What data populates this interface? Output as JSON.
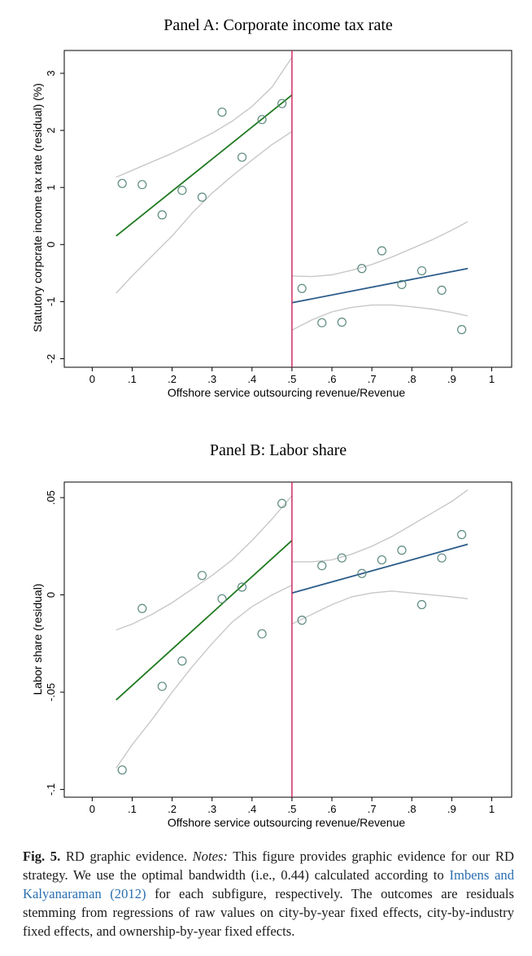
{
  "chart_data": [
    {
      "type": "scatter",
      "title": "Panel A: Corporate income tax rate",
      "xlabel": "Offshore service outsourcing revenue/Revenue",
      "ylabel": "Statutory corpcrate income tax rate (residual) (%)",
      "xlim": [
        -0.07,
        1.05
      ],
      "ylim": [
        -2.15,
        3.4
      ],
      "x_ticks": [
        0,
        0.1,
        0.2,
        0.3,
        0.4,
        0.5,
        0.6,
        0.7,
        0.8,
        0.9,
        1
      ],
      "x_tick_labels": [
        "0",
        ".1",
        ".2",
        ".3",
        ".4",
        ".5",
        ".6",
        ".7",
        ".8",
        ".9",
        "1"
      ],
      "y_ticks": [
        -2,
        -1,
        0,
        1,
        2,
        3
      ],
      "y_tick_labels": [
        "-2",
        "-1",
        "0",
        "1",
        "2",
        "3"
      ],
      "cutoff": 0.5,
      "points": [
        {
          "x": 0.075,
          "y": 1.07
        },
        {
          "x": 0.125,
          "y": 1.05
        },
        {
          "x": 0.175,
          "y": 0.52
        },
        {
          "x": 0.225,
          "y": 0.95
        },
        {
          "x": 0.275,
          "y": 0.83
        },
        {
          "x": 0.325,
          "y": 2.32
        },
        {
          "x": 0.375,
          "y": 1.53
        },
        {
          "x": 0.425,
          "y": 2.19
        },
        {
          "x": 0.475,
          "y": 2.47
        },
        {
          "x": 0.525,
          "y": -0.77
        },
        {
          "x": 0.575,
          "y": -1.37
        },
        {
          "x": 0.625,
          "y": -1.36
        },
        {
          "x": 0.675,
          "y": -0.42
        },
        {
          "x": 0.725,
          "y": -0.11
        },
        {
          "x": 0.775,
          "y": -0.7
        },
        {
          "x": 0.825,
          "y": -0.46
        },
        {
          "x": 0.875,
          "y": -0.8
        },
        {
          "x": 0.925,
          "y": -1.49
        }
      ],
      "fit_left": {
        "x": [
          0.06,
          0.5
        ],
        "y": [
          0.15,
          2.62
        ]
      },
      "fit_right": {
        "x": [
          0.5,
          0.94
        ],
        "y": [
          -1.02,
          -0.42
        ]
      },
      "ci_left_upper": {
        "x": [
          0.06,
          0.1,
          0.15,
          0.2,
          0.25,
          0.3,
          0.35,
          0.4,
          0.45,
          0.5
        ],
        "y": [
          1.18,
          1.3,
          1.45,
          1.6,
          1.77,
          1.95,
          2.16,
          2.42,
          2.76,
          3.28
        ]
      },
      "ci_left_lower": {
        "x": [
          0.06,
          0.1,
          0.15,
          0.2,
          0.25,
          0.3,
          0.35,
          0.4,
          0.45,
          0.5
        ],
        "y": [
          -0.85,
          -0.55,
          -0.2,
          0.15,
          0.55,
          0.9,
          1.2,
          1.48,
          1.75,
          1.98
        ]
      },
      "ci_right_upper": {
        "x": [
          0.5,
          0.55,
          0.6,
          0.65,
          0.7,
          0.75,
          0.8,
          0.85,
          0.9,
          0.94
        ],
        "y": [
          -0.55,
          -0.56,
          -0.53,
          -0.45,
          -0.35,
          -0.22,
          -0.07,
          0.08,
          0.25,
          0.4
        ]
      },
      "ci_right_lower": {
        "x": [
          0.5,
          0.55,
          0.6,
          0.65,
          0.7,
          0.75,
          0.8,
          0.85,
          0.9,
          0.94
        ],
        "y": [
          -1.5,
          -1.32,
          -1.18,
          -1.1,
          -1.06,
          -1.06,
          -1.09,
          -1.13,
          -1.19,
          -1.25
        ]
      },
      "colors": {
        "points": "#5c8a80",
        "fit_left": "#1f7a1f",
        "fit_right": "#2b5c8a",
        "ci": "#c8c8c8",
        "cutoff": "#cc1f5a"
      }
    },
    {
      "type": "scatter",
      "title": "Panel B: Labor share",
      "xlabel": "Offshore service outsourcing revenue/Revenue",
      "ylabel": "Labor share (residual)",
      "xlim": [
        -0.07,
        1.05
      ],
      "ylim": [
        -0.104,
        0.058
      ],
      "x_ticks": [
        0,
        0.1,
        0.2,
        0.3,
        0.4,
        0.5,
        0.6,
        0.7,
        0.8,
        0.9,
        1
      ],
      "x_tick_labels": [
        "0",
        ".1",
        ".2",
        ".3",
        ".4",
        ".5",
        ".6",
        ".7",
        ".8",
        ".9",
        "1"
      ],
      "y_ticks": [
        -0.1,
        -0.05,
        0,
        0.05
      ],
      "y_tick_labels": [
        "-.1",
        "-.05",
        "0",
        ".05"
      ],
      "cutoff": 0.5,
      "points": [
        {
          "x": 0.075,
          "y": -0.09
        },
        {
          "x": 0.125,
          "y": -0.007
        },
        {
          "x": 0.175,
          "y": -0.047
        },
        {
          "x": 0.225,
          "y": -0.034
        },
        {
          "x": 0.275,
          "y": 0.01
        },
        {
          "x": 0.325,
          "y": -0.002
        },
        {
          "x": 0.375,
          "y": 0.004
        },
        {
          "x": 0.425,
          "y": -0.02
        },
        {
          "x": 0.475,
          "y": 0.047
        },
        {
          "x": 0.525,
          "y": -0.013
        },
        {
          "x": 0.575,
          "y": 0.015
        },
        {
          "x": 0.625,
          "y": 0.019
        },
        {
          "x": 0.675,
          "y": 0.011
        },
        {
          "x": 0.725,
          "y": 0.018
        },
        {
          "x": 0.775,
          "y": 0.023
        },
        {
          "x": 0.825,
          "y": -0.005
        },
        {
          "x": 0.875,
          "y": 0.019
        },
        {
          "x": 0.925,
          "y": 0.031
        }
      ],
      "fit_left": {
        "x": [
          0.06,
          0.5
        ],
        "y": [
          -0.054,
          0.028
        ]
      },
      "fit_right": {
        "x": [
          0.5,
          0.94
        ],
        "y": [
          0.001,
          0.026
        ]
      },
      "ci_left_upper": {
        "x": [
          0.06,
          0.1,
          0.15,
          0.2,
          0.25,
          0.3,
          0.35,
          0.4,
          0.45,
          0.5
        ],
        "y": [
          -0.018,
          -0.015,
          -0.01,
          -0.004,
          0.003,
          0.01,
          0.018,
          0.028,
          0.039,
          0.051
        ]
      },
      "ci_left_lower": {
        "x": [
          0.06,
          0.1,
          0.15,
          0.2,
          0.25,
          0.3,
          0.35,
          0.4,
          0.45,
          0.5
        ],
        "y": [
          -0.089,
          -0.077,
          -0.064,
          -0.05,
          -0.037,
          -0.025,
          -0.014,
          -0.006,
          0.0,
          0.005
        ]
      },
      "ci_right_upper": {
        "x": [
          0.5,
          0.55,
          0.6,
          0.65,
          0.7,
          0.75,
          0.8,
          0.85,
          0.9,
          0.94
        ],
        "y": [
          0.017,
          0.017,
          0.018,
          0.021,
          0.025,
          0.03,
          0.036,
          0.042,
          0.048,
          0.054
        ]
      },
      "ci_right_lower": {
        "x": [
          0.5,
          0.55,
          0.6,
          0.65,
          0.7,
          0.75,
          0.8,
          0.85,
          0.9,
          0.94
        ],
        "y": [
          -0.015,
          -0.01,
          -0.005,
          -0.001,
          0.001,
          0.002,
          0.001,
          0.0,
          -0.001,
          -0.002
        ]
      },
      "colors": {
        "points": "#5c8a80",
        "fit_left": "#1f7a1f",
        "fit_right": "#2b5c8a",
        "ci": "#c8c8c8",
        "cutoff": "#cc1f5a"
      }
    }
  ],
  "caption": {
    "fig_label": "Fig. 5.",
    "title": " RD graphic evidence. ",
    "notes_label": "Notes:",
    "text_before_ref": " This figure provides graphic evidence for our RD strategy. We use the optimal bandwidth (i.e., 0.44) calculated according to ",
    "ref": "Imbens and Kalyanaraman (2012)",
    "text_after_ref": " for each subfigure, respectively. The outcomes are residuals stemming from regressions of raw values on city-by-year fixed effects, city-by-industry fixed effects, and ownership-by-year fixed effects."
  }
}
